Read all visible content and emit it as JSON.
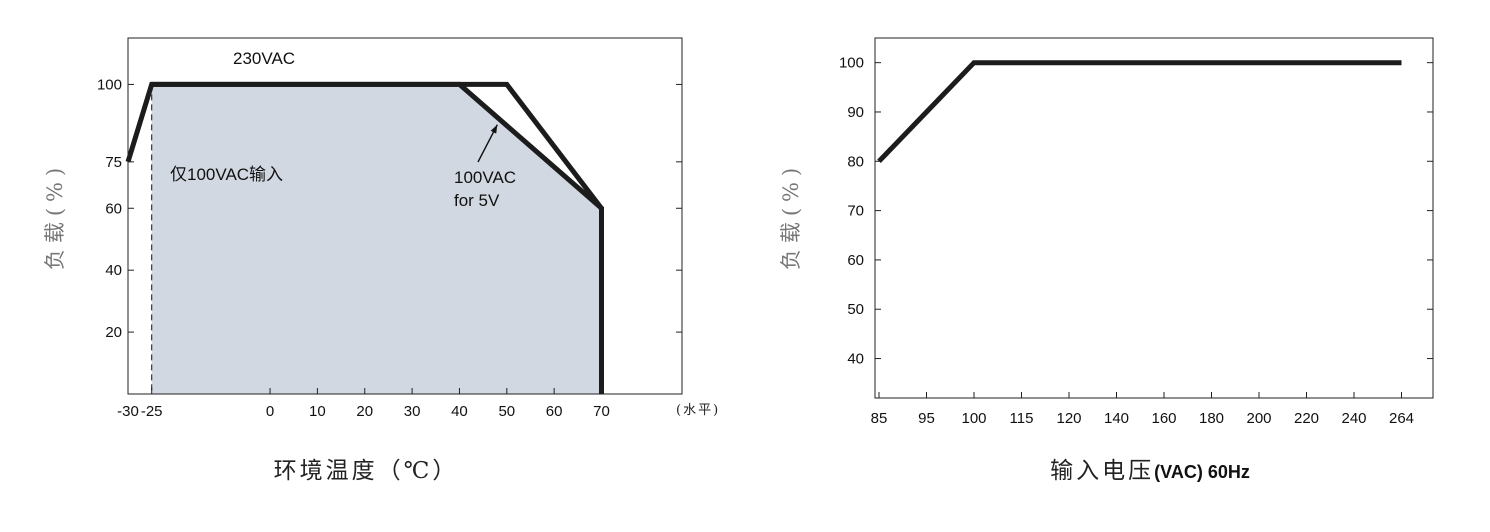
{
  "chart_data": [
    {
      "type": "area",
      "xlabel": "环境温度（℃）",
      "ylabel": "负载(%)",
      "x_unit_label": "(水平)",
      "x_ticks": [
        -30,
        -25,
        0,
        10,
        20,
        30,
        40,
        50,
        60,
        70
      ],
      "y_ticks": [
        20,
        40,
        60,
        75,
        100
      ],
      "xlim": [
        -30,
        87
      ],
      "ylim": [
        0,
        115
      ],
      "grid": false,
      "series": [
        {
          "name": "230VAC",
          "style": "outline",
          "points": [
            [
              -30,
              75
            ],
            [
              -25,
              100
            ],
            [
              50,
              100
            ],
            [
              70,
              60
            ],
            [
              70,
              0
            ]
          ]
        },
        {
          "name": "100VAC for 5V",
          "style": "filled",
          "points": [
            [
              -25,
              0
            ],
            [
              -25,
              100
            ],
            [
              40,
              100
            ],
            [
              70,
              60
            ],
            [
              70,
              0
            ]
          ]
        }
      ],
      "annotations": {
        "top_line_label": "230VAC",
        "dashed_line_label": "仅100VAC输入",
        "dashed_line_x": -25,
        "arrow_label_line1": "100VAC",
        "arrow_label_line2": "for 5V",
        "arrow_target": [
          48,
          87
        ]
      },
      "colors": {
        "fill": "#d2d8e1",
        "line": "#1c1c1c"
      }
    },
    {
      "type": "line",
      "xlabel_cn": "输入电压",
      "xlabel_unit": "(VAC) 60Hz",
      "ylabel": "负载(%)",
      "categories": [
        "85",
        "95",
        "100",
        "115",
        "120",
        "140",
        "160",
        "180",
        "200",
        "220",
        "240",
        "264"
      ],
      "y_ticks": [
        40,
        50,
        60,
        70,
        80,
        90,
        100
      ],
      "ylim": [
        32,
        105
      ],
      "grid": false,
      "series": [
        {
          "values": [
            80,
            90,
            100,
            100,
            100,
            100,
            100,
            100,
            100,
            100,
            100,
            100
          ]
        }
      ],
      "colors": {
        "line": "#1c1c1c"
      }
    }
  ]
}
